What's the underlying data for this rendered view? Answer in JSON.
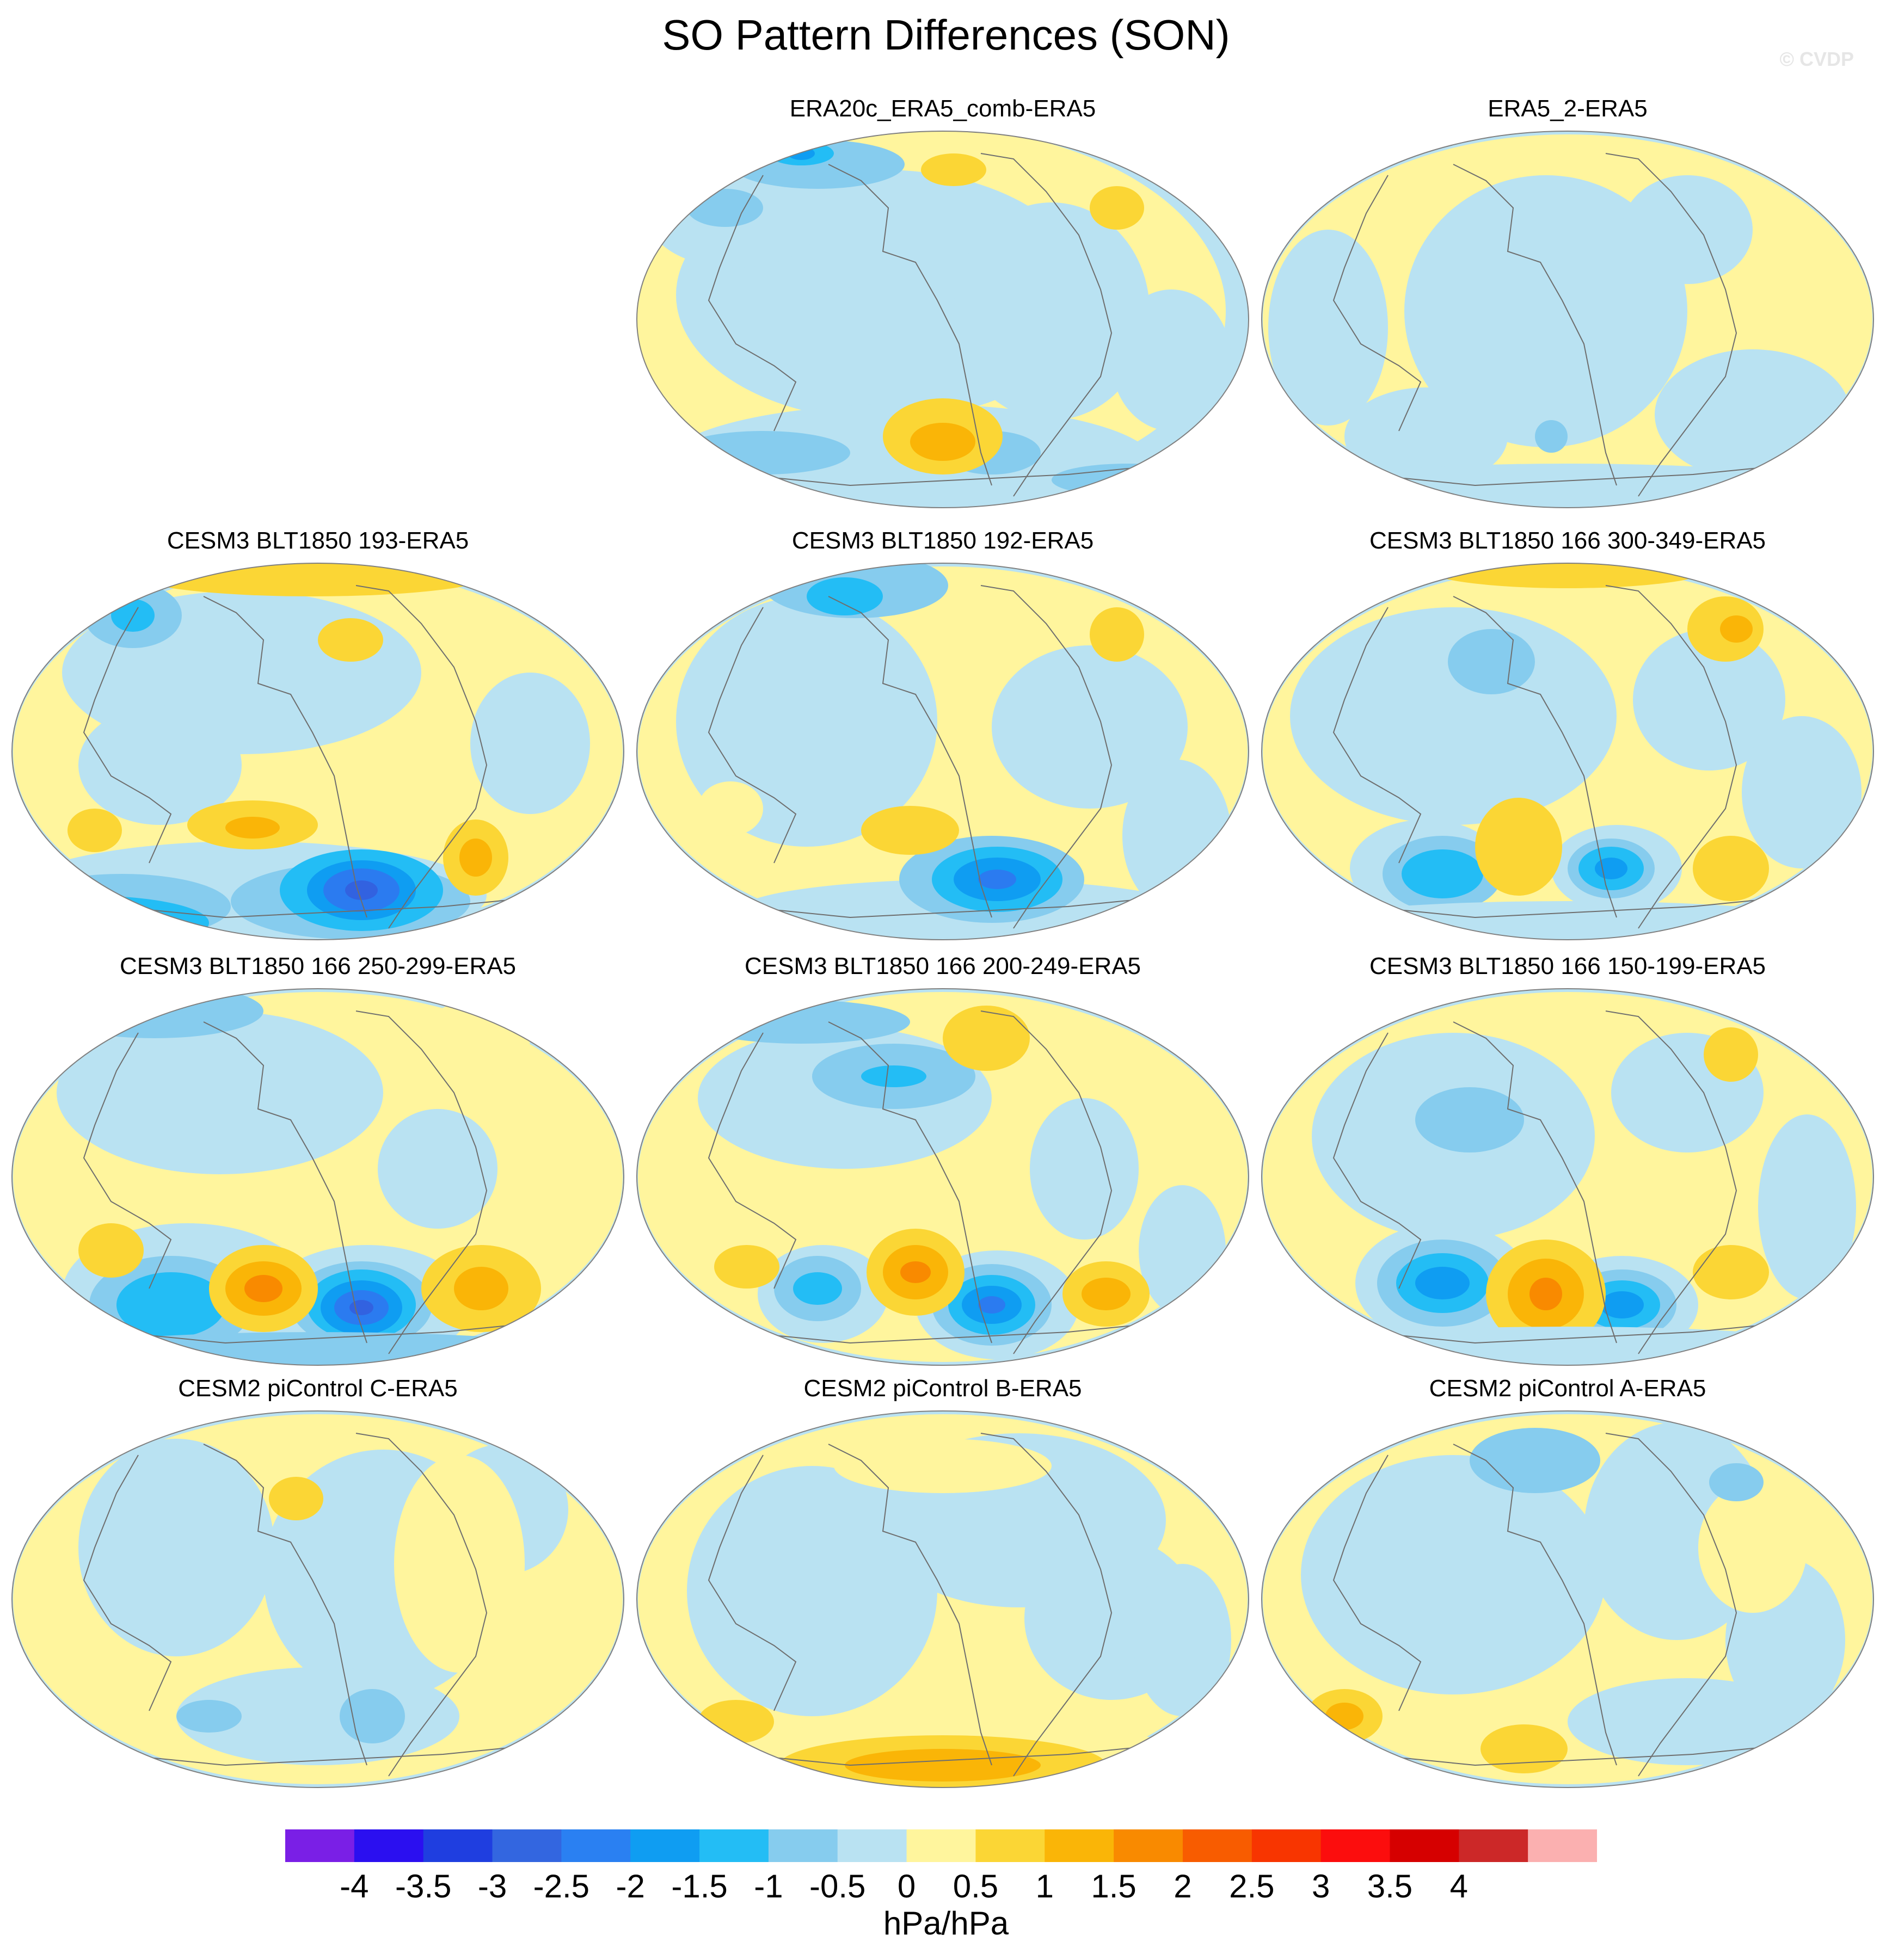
{
  "title": "SO Pattern Differences (SON)",
  "watermark": "© CVDP",
  "colors": {
    "ocean_base": "#b9e2f2",
    "pos_weak": "#fff59d",
    "pos_1": "#fbd635",
    "pos_2": "#fab507",
    "pos_3": "#f98a00",
    "pos_4": "#f85c00",
    "neg_1": "#86ccee",
    "neg_2": "#23bdf5",
    "neg_3": "#0f9df2",
    "neg_4": "#2b7bf0",
    "neg_5": "#3262e0",
    "coast": "#6e6e6e"
  },
  "panels": [
    {
      "title": "ERA20c_ERA5_comb-ERA5",
      "pattern": 0
    },
    {
      "title": "ERA5_2-ERA5",
      "pattern": 1
    },
    {
      "title": "CESM3 BLT1850 193-ERA5",
      "pattern": 2
    },
    {
      "title": "CESM3 BLT1850 192-ERA5",
      "pattern": 3
    },
    {
      "title": "CESM3 BLT1850 166 300-349-ERA5",
      "pattern": 4
    },
    {
      "title": "CESM3 BLT1850 166 250-299-ERA5",
      "pattern": 5
    },
    {
      "title": "CESM3 BLT1850 166 200-249-ERA5",
      "pattern": 6
    },
    {
      "title": "CESM3 BLT1850 166 150-199-ERA5",
      "pattern": 7
    },
    {
      "title": "CESM2 piControl C-ERA5",
      "pattern": 8
    },
    {
      "title": "CESM2 piControl B-ERA5",
      "pattern": 9
    },
    {
      "title": "CESM2 piControl A-ERA5",
      "pattern": 10
    }
  ],
  "colorbar": {
    "units": "hPa/hPa",
    "labels": [
      "-4",
      "-3.5",
      "-3",
      "-2.5",
      "-2",
      "-1.5",
      "-1",
      "-0.5",
      "0",
      "0.5",
      "1",
      "1.5",
      "2",
      "2.5",
      "3",
      "3.5",
      "4"
    ],
    "colors": [
      "#7a1fe6",
      "#2b0ff0",
      "#1f3ee0",
      "#3366e0",
      "#2a80f2",
      "#0f9df2",
      "#23bdf5",
      "#86ccee",
      "#b9e2f2",
      "#fff59d",
      "#fbd635",
      "#fab507",
      "#f98a00",
      "#f85c00",
      "#f83500",
      "#fc0d0d",
      "#d60000",
      "#cc2828",
      "#fbb0b0"
    ]
  }
}
